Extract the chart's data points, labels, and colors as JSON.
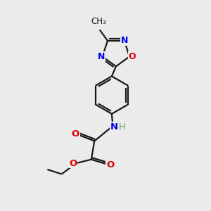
{
  "bg_color": "#ebebeb",
  "bond_color": "#1a1a1a",
  "N_color": "#0000ee",
  "O_color": "#dd0000",
  "H_color": "#5fa05f",
  "line_width": 1.6,
  "figsize": [
    3.0,
    3.0
  ],
  "dpi": 100,
  "xlim": [
    0,
    10
  ],
  "ylim": [
    0,
    10
  ]
}
